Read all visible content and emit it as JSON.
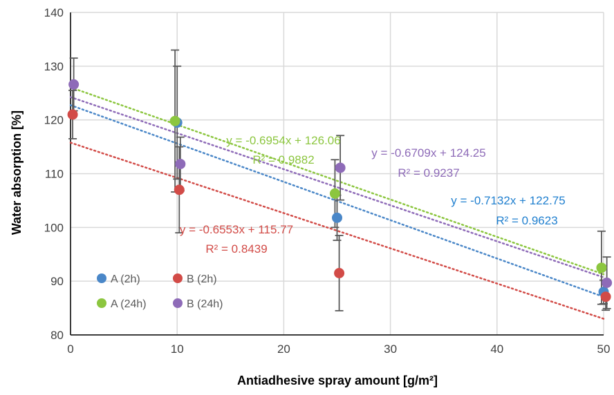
{
  "chart_data": {
    "type": "scatter",
    "title": "",
    "xlabel": "Antiadhesive spray amount [g/m²]",
    "ylabel": "Water absorption [%]",
    "xlim": [
      0,
      50
    ],
    "ylim": [
      80,
      140
    ],
    "x_ticks": [
      "0",
      "10",
      "20",
      "30",
      "40",
      "50"
    ],
    "y_ticks": [
      "80",
      "90",
      "100",
      "110",
      "120",
      "130",
      "140"
    ],
    "grid": true,
    "legend_position": "bottom-left",
    "series": [
      {
        "name": "A (2h)",
        "color": "#4a87c8",
        "points": [
          {
            "x": 10,
            "y": 119.5,
            "err": 10.5
          },
          {
            "x": 25,
            "y": 101.8,
            "err": 4.2
          },
          {
            "x": 50,
            "y": 88.0,
            "err": 2.2
          }
        ],
        "trendline": {
          "slope": -0.7132,
          "intercept": 122.75,
          "equation": "y = -0.7132x + 122.75",
          "r2": "R² = 0.9623",
          "text_color": "#1f7fcf"
        }
      },
      {
        "name": "B (2h)",
        "color": "#d24b47",
        "points": [
          {
            "x": 0.2,
            "y": 121.0,
            "err": 4.5
          },
          {
            "x": 10.2,
            "y": 107.0,
            "err": 8.0
          },
          {
            "x": 25.2,
            "y": 91.5,
            "err": 7.0
          },
          {
            "x": 50.2,
            "y": 87.1,
            "err": 2.5
          }
        ],
        "trendline": {
          "slope": -0.6553,
          "intercept": 115.77,
          "equation": "y = -0.6553x + 115.77",
          "r2": "R² = 0.8439",
          "text_color": "#d24b47"
        }
      },
      {
        "name": "A (24h)",
        "color": "#8cc63f",
        "points": [
          {
            "x": 9.8,
            "y": 119.8,
            "err": 13.2
          },
          {
            "x": 24.8,
            "y": 106.3,
            "err": 6.3
          },
          {
            "x": 49.8,
            "y": 92.5,
            "err": 6.8
          }
        ],
        "trendline": {
          "slope": -0.6954,
          "intercept": 126.06,
          "equation": "y = -0.6954x + 126.06",
          "r2": "R² = 0.9882",
          "text_color": "#8cc63f"
        }
      },
      {
        "name": "B (24h)",
        "color": "#8e6bb8",
        "points": [
          {
            "x": 0.3,
            "y": 126.6,
            "err": 4.9
          },
          {
            "x": 10.3,
            "y": 111.8,
            "err": 5.0
          },
          {
            "x": 25.3,
            "y": 111.1,
            "err": 6.0
          },
          {
            "x": 50.3,
            "y": 89.7,
            "err": 4.8
          }
        ],
        "trendline": {
          "slope": -0.6709,
          "intercept": 124.25,
          "equation": "y = -0.6709x + 124.25",
          "r2": "R² = 0.9237",
          "text_color": "#8e6bb8"
        }
      }
    ]
  }
}
